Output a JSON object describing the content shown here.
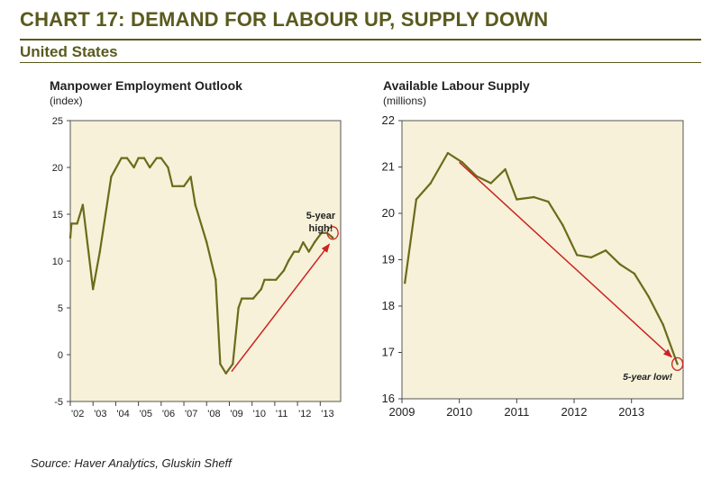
{
  "header": {
    "title": "CHART 17: DEMAND FOR LABOUR UP, SUPPLY DOWN",
    "subtitle": "United States"
  },
  "source": "Source: Haver Analytics, Gluskin Sheff",
  "colors": {
    "header": "#5a5a1e",
    "plot_bg": "#f6f1d8",
    "series_line": "#6b6b1a",
    "arrow": "#cc2222"
  },
  "chart_data": [
    {
      "type": "line",
      "title": "Manpower Employment Outlook",
      "ylabel": "(index)",
      "ylim": [
        -5,
        25
      ],
      "yticks": [
        -5,
        0,
        5,
        10,
        15,
        20,
        25
      ],
      "xlim": [
        2002,
        2013.9
      ],
      "xticks": [
        2002,
        2003,
        2004,
        2005,
        2006,
        2007,
        2008,
        2009,
        2010,
        2011,
        2012,
        2013
      ],
      "xtick_labels": [
        "'02",
        "'03",
        "'04",
        "'05",
        "'06",
        "'07",
        "'08",
        "'09",
        "'10",
        "'11",
        "'12",
        "'13"
      ],
      "grid": false,
      "series": [
        {
          "name": "Manpower Employment Outlook",
          "x": [
            2002,
            2002.05,
            2002.3,
            2002.55,
            2003,
            2003.3,
            2003.8,
            2004.25,
            2004.5,
            2004.8,
            2005,
            2005.25,
            2005.5,
            2005.8,
            2006,
            2006.3,
            2006.5,
            2006.8,
            2007,
            2007.3,
            2007.5,
            2008,
            2008.4,
            2008.6,
            2008.85,
            2009.15,
            2009.4,
            2009.55,
            2009.8,
            2010.05,
            2010.4,
            2010.55,
            2010.75,
            2011.05,
            2011.4,
            2011.6,
            2011.85,
            2012.05,
            2012.25,
            2012.5,
            2012.75,
            2013.05,
            2013.3,
            2013.55
          ],
          "values": [
            12.5,
            14,
            14,
            16,
            7,
            11,
            19,
            21,
            21,
            20,
            21,
            21,
            20,
            21,
            21,
            20,
            18,
            18,
            18,
            19,
            16,
            12,
            8,
            -1,
            -2,
            -1,
            5,
            6,
            6,
            6,
            7,
            8,
            8,
            8,
            9,
            10,
            11,
            11,
            12,
            11,
            12,
            13,
            13,
            12.5
          ]
        }
      ],
      "annotations": [
        {
          "text": "5-year",
          "type": "label"
        },
        {
          "text": "high!",
          "type": "label"
        },
        {
          "type": "arrow",
          "from": [
            2009.1,
            -1.8
          ],
          "to": [
            2013.4,
            11.8
          ]
        },
        {
          "type": "circle",
          "at": [
            2013.55,
            13
          ]
        }
      ]
    },
    {
      "type": "line",
      "title": "Available Labour Supply",
      "ylabel": "(millions)",
      "ylim": [
        16,
        22
      ],
      "yticks": [
        16,
        17,
        18,
        19,
        20,
        21,
        22
      ],
      "xlim": [
        2009,
        2013.9
      ],
      "xticks": [
        2009,
        2010,
        2011,
        2012,
        2013
      ],
      "xtick_labels": [
        "2009",
        "2010",
        "2011",
        "2012",
        "2013"
      ],
      "grid": false,
      "series": [
        {
          "name": "Available Labour Supply",
          "x": [
            2009.05,
            2009.25,
            2009.5,
            2009.8,
            2010.05,
            2010.3,
            2010.55,
            2010.8,
            2011.0,
            2011.3,
            2011.55,
            2011.8,
            2012.05,
            2012.3,
            2012.55,
            2012.8,
            2013.05,
            2013.3,
            2013.55,
            2013.8
          ],
          "values": [
            18.5,
            20.3,
            20.65,
            21.3,
            21.1,
            20.8,
            20.65,
            20.95,
            20.3,
            20.35,
            20.25,
            19.75,
            19.1,
            19.05,
            19.2,
            18.9,
            18.7,
            18.2,
            17.6,
            16.75
          ]
        }
      ],
      "annotations": [
        {
          "text": "5-year low!",
          "type": "label"
        },
        {
          "type": "arrow",
          "from": [
            2010.0,
            21.1
          ],
          "to": [
            2013.7,
            16.9
          ]
        },
        {
          "type": "circle",
          "at": [
            2013.8,
            16.75
          ]
        }
      ]
    }
  ]
}
